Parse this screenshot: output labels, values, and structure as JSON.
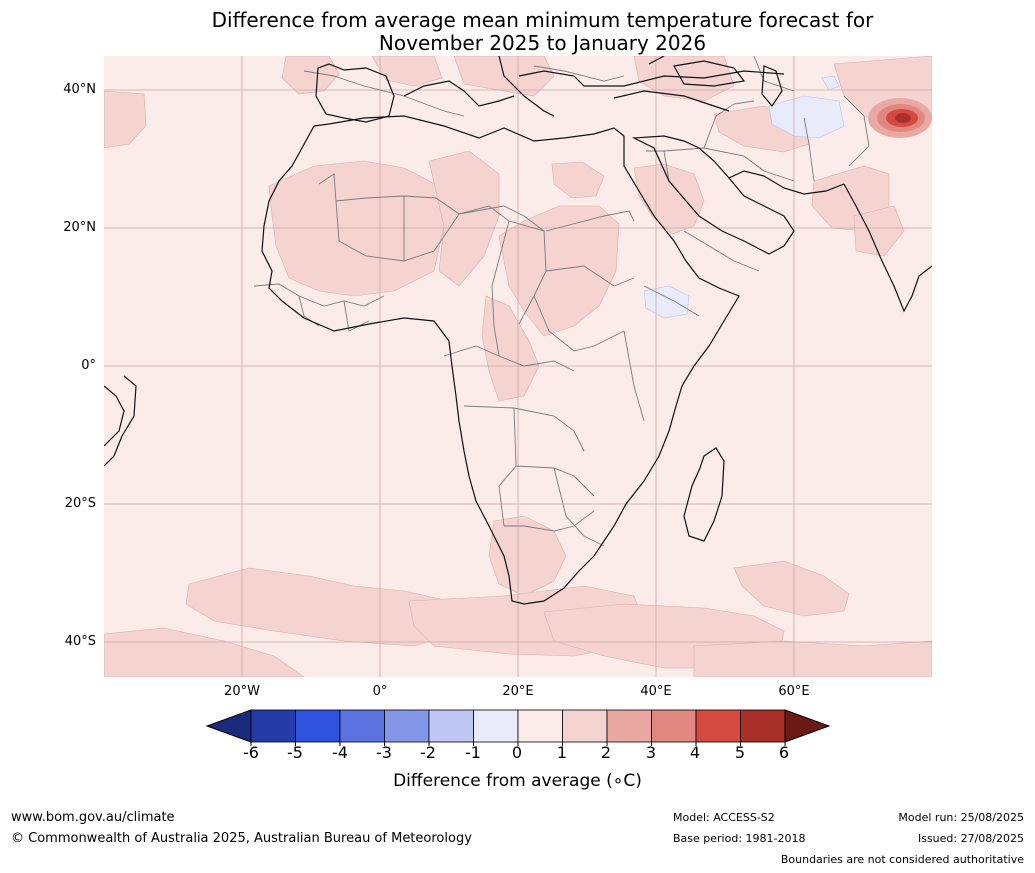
{
  "title": {
    "line1": "Difference from average mean minimum temperature forecast for",
    "line2": "November 2025 to January 2026"
  },
  "map": {
    "lat_labels": [
      "40°N",
      "20°N",
      "0°",
      "20°S",
      "40°S"
    ],
    "lon_labels": [
      "20°W",
      "0°",
      "20°E",
      "40°E",
      "60°E"
    ],
    "lat_range": [
      -45,
      45
    ],
    "lon_range": [
      -40,
      80
    ],
    "grid": true,
    "ocean_fill": "#fbebe9",
    "land_fill": "#fbebe9",
    "anomaly_fill_1_2": "#f4d3d0",
    "anomaly_fill_neg": "#e8ecfa",
    "hotspot_colors": [
      "#eaa8a3",
      "#e08880",
      "#d44a40",
      "#a83028"
    ]
  },
  "colorbar": {
    "ticks": [
      "-6",
      "-5",
      "-4",
      "-3",
      "-2",
      "-1",
      "0",
      "1",
      "2",
      "3",
      "4",
      "5",
      "6"
    ],
    "colors": [
      "#1a2a7c",
      "#253ba8",
      "#2f52de",
      "#5a73e0",
      "#8496e8",
      "#bfc8f4",
      "#e8ecfa",
      "#fbebe9",
      "#f4d3d0",
      "#eaa8a3",
      "#e08880",
      "#d44a40",
      "#a83028",
      "#6b1a14"
    ],
    "label": "Difference from average (∘C)"
  },
  "footer": {
    "website": "www.bom.gov.au/climate",
    "copyright": "© Commonwealth of Australia 2025, Australian Bureau of Meteorology",
    "model": "Model: ACCESS-S2",
    "base_period": "Base period: 1981-2018",
    "model_run": "Model run: 25/08/2025",
    "issued": "Issued: 27/08/2025",
    "disclaimer": "Boundaries are not considered authoritative"
  }
}
